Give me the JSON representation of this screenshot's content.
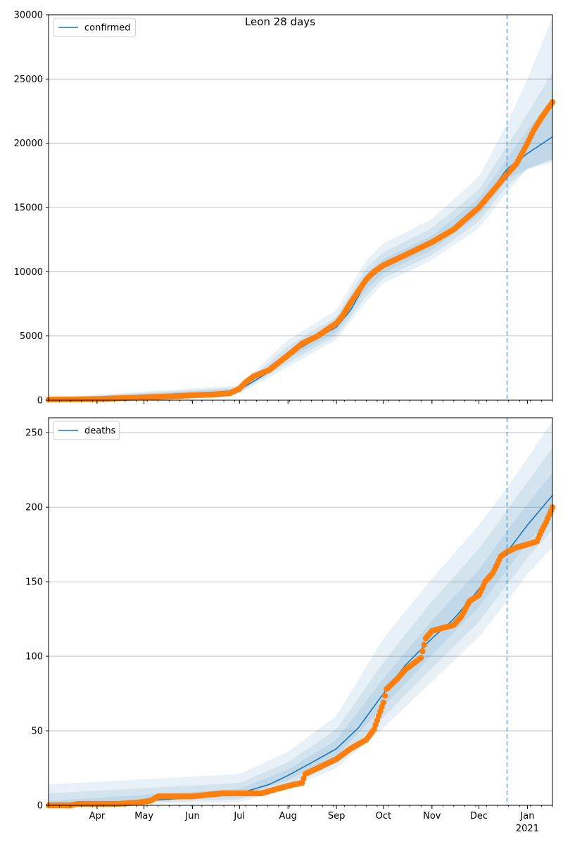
{
  "title": "Leon 28 days",
  "colors": {
    "model_line": "#1f77b4",
    "observed": "#ff7f0e",
    "band": "#1f77b4",
    "grid": "#b0b0b0",
    "vline": "#1f77b4"
  },
  "x_axis": {
    "start": "2020-03-01",
    "end": "2021-01-17",
    "forecast_start": "2020-12-19",
    "month_ticks": [
      {
        "date": "2020-04-01",
        "label": "Apr"
      },
      {
        "date": "2020-05-01",
        "label": "May"
      },
      {
        "date": "2020-06-01",
        "label": "Jun"
      },
      {
        "date": "2020-07-01",
        "label": "Jul"
      },
      {
        "date": "2020-08-01",
        "label": "Aug"
      },
      {
        "date": "2020-09-01",
        "label": "Sep"
      },
      {
        "date": "2020-10-01",
        "label": "Oct"
      },
      {
        "date": "2020-11-01",
        "label": "Nov"
      },
      {
        "date": "2020-12-01",
        "label": "Dec"
      },
      {
        "date": "2021-01-01",
        "label": "Jan"
      }
    ],
    "year_label": {
      "date": "2021-01-01",
      "label": "2021"
    }
  },
  "chart_data": [
    {
      "type": "line",
      "legend": "confirmed",
      "legend_position": "top-left",
      "grid": "horizontal",
      "ylim": [
        0,
        30000
      ],
      "yticks": [
        0,
        5000,
        10000,
        15000,
        20000,
        25000,
        30000
      ],
      "model_median": [
        [
          "2020-03-01",
          0
        ],
        [
          "2020-06-15",
          400
        ],
        [
          "2020-06-28",
          650
        ],
        [
          "2020-07-05",
          1100
        ],
        [
          "2020-07-20",
          2200
        ],
        [
          "2020-08-01",
          3500
        ],
        [
          "2020-08-15",
          4500
        ],
        [
          "2020-09-01",
          5700
        ],
        [
          "2020-09-10",
          7000
        ],
        [
          "2020-09-20",
          9200
        ],
        [
          "2020-10-01",
          10400
        ],
        [
          "2020-10-15",
          11200
        ],
        [
          "2020-11-01",
          12200
        ],
        [
          "2020-11-15",
          13300
        ],
        [
          "2020-12-01",
          15000
        ],
        [
          "2020-12-10",
          16500
        ],
        [
          "2020-12-19",
          18000
        ],
        [
          "2021-01-01",
          19200
        ],
        [
          "2021-01-17",
          20500
        ]
      ],
      "bands": [
        {
          "name": "50%",
          "lower": [
            [
              "2020-03-01",
              0
            ],
            [
              "2020-07-01",
              700
            ],
            [
              "2020-08-01",
              3200
            ],
            [
              "2020-09-01",
              5300
            ],
            [
              "2020-09-20",
              8600
            ],
            [
              "2020-10-01",
              9900
            ],
            [
              "2020-11-01",
              11700
            ],
            [
              "2020-12-01",
              14400
            ],
            [
              "2020-12-19",
              17200
            ],
            [
              "2021-01-01",
              18000
            ],
            [
              "2021-01-17",
              18800
            ]
          ],
          "upper": [
            [
              "2020-03-01",
              100
            ],
            [
              "2020-07-01",
              900
            ],
            [
              "2020-08-01",
              3800
            ],
            [
              "2020-09-01",
              6100
            ],
            [
              "2020-09-20",
              9800
            ],
            [
              "2020-10-01",
              11000
            ],
            [
              "2020-11-01",
              12800
            ],
            [
              "2020-12-01",
              15700
            ],
            [
              "2020-12-19",
              18800
            ],
            [
              "2021-01-01",
              21000
            ],
            [
              "2021-01-17",
              23500
            ]
          ]
        },
        {
          "name": "80%",
          "lower": [
            [
              "2020-03-01",
              0
            ],
            [
              "2020-07-01",
              600
            ],
            [
              "2020-08-01",
              2900
            ],
            [
              "2020-09-01",
              5000
            ],
            [
              "2020-09-20",
              8100
            ],
            [
              "2020-10-01",
              9500
            ],
            [
              "2020-11-01",
              11300
            ],
            [
              "2020-12-01",
              13900
            ],
            [
              "2020-12-19",
              16700
            ],
            [
              "2021-01-01",
              18000
            ],
            [
              "2021-01-17",
              18700
            ]
          ],
          "upper": [
            [
              "2020-03-01",
              150
            ],
            [
              "2020-07-01",
              1000
            ],
            [
              "2020-08-01",
              4200
            ],
            [
              "2020-09-01",
              6500
            ],
            [
              "2020-09-20",
              10300
            ],
            [
              "2020-10-01",
              11500
            ],
            [
              "2020-11-01",
              13400
            ],
            [
              "2020-12-01",
              16400
            ],
            [
              "2020-12-19",
              19800
            ],
            [
              "2021-01-01",
              22300
            ],
            [
              "2021-01-17",
              25500
            ]
          ]
        },
        {
          "name": "95%",
          "lower": [
            [
              "2020-03-01",
              0
            ],
            [
              "2020-07-01",
              500
            ],
            [
              "2020-08-01",
              2600
            ],
            [
              "2020-09-01",
              4700
            ],
            [
              "2020-09-20",
              7700
            ],
            [
              "2020-10-01",
              9100
            ],
            [
              "2020-11-01",
              10900
            ],
            [
              "2020-12-01",
              13400
            ],
            [
              "2020-12-19",
              16200
            ],
            [
              "2021-01-01",
              18000
            ],
            [
              "2021-01-17",
              18500
            ]
          ],
          "upper": [
            [
              "2020-03-01",
              200
            ],
            [
              "2020-07-01",
              1150
            ],
            [
              "2020-08-01",
              4700
            ],
            [
              "2020-09-01",
              7000
            ],
            [
              "2020-09-20",
              10900
            ],
            [
              "2020-10-01",
              12200
            ],
            [
              "2020-11-01",
              14100
            ],
            [
              "2020-12-01",
              17400
            ],
            [
              "2020-12-19",
              21500
            ],
            [
              "2021-01-01",
              25000
            ],
            [
              "2021-01-17",
              29800
            ]
          ]
        }
      ],
      "observed": [
        [
          "2020-03-01",
          50
        ],
        [
          "2020-03-15",
          60
        ],
        [
          "2020-04-01",
          80
        ],
        [
          "2020-04-15",
          150
        ],
        [
          "2020-05-01",
          220
        ],
        [
          "2020-05-15",
          280
        ],
        [
          "2020-06-01",
          380
        ],
        [
          "2020-06-15",
          450
        ],
        [
          "2020-06-25",
          550
        ],
        [
          "2020-07-01",
          900
        ],
        [
          "2020-07-05",
          1400
        ],
        [
          "2020-07-10",
          1850
        ],
        [
          "2020-07-20",
          2350
        ],
        [
          "2020-08-01",
          3500
        ],
        [
          "2020-08-10",
          4400
        ],
        [
          "2020-08-20",
          5000
        ],
        [
          "2020-09-01",
          6000
        ],
        [
          "2020-09-05",
          6600
        ],
        [
          "2020-09-10",
          7600
        ],
        [
          "2020-09-15",
          8500
        ],
        [
          "2020-09-20",
          9400
        ],
        [
          "2020-09-25",
          10000
        ],
        [
          "2020-10-01",
          10500
        ],
        [
          "2020-10-15",
          11300
        ],
        [
          "2020-11-01",
          12300
        ],
        [
          "2020-11-15",
          13300
        ],
        [
          "2020-12-01",
          15000
        ],
        [
          "2020-12-10",
          16300
        ],
        [
          "2020-12-19",
          17600
        ],
        [
          "2020-12-25",
          18400
        ],
        [
          "2021-01-01",
          20000
        ],
        [
          "2021-01-05",
          21000
        ],
        [
          "2021-01-10",
          22000
        ],
        [
          "2021-01-17",
          23200
        ]
      ]
    },
    {
      "type": "line",
      "legend": "deaths",
      "legend_position": "top-left",
      "grid": "horizontal",
      "ylim": [
        0,
        260
      ],
      "yticks": [
        0,
        50,
        100,
        150,
        200,
        250
      ],
      "model_median": [
        [
          "2020-03-01",
          0
        ],
        [
          "2020-04-15",
          2
        ],
        [
          "2020-06-01",
          5
        ],
        [
          "2020-07-01",
          8
        ],
        [
          "2020-07-20",
          14
        ],
        [
          "2020-08-01",
          20
        ],
        [
          "2020-08-15",
          28
        ],
        [
          "2020-09-01",
          38
        ],
        [
          "2020-09-15",
          52
        ],
        [
          "2020-10-01",
          75
        ],
        [
          "2020-10-15",
          94
        ],
        [
          "2020-11-01",
          112
        ],
        [
          "2020-11-15",
          125
        ],
        [
          "2020-12-01",
          145
        ],
        [
          "2020-12-19",
          170
        ],
        [
          "2021-01-01",
          188
        ],
        [
          "2021-01-17",
          208
        ]
      ],
      "bands": [
        {
          "name": "50%",
          "lower": [
            [
              "2020-03-01",
              0
            ],
            [
              "2020-07-01",
              6
            ],
            [
              "2020-08-01",
              17
            ],
            [
              "2020-09-01",
              33
            ],
            [
              "2020-10-01",
              66
            ],
            [
              "2020-11-01",
              101
            ],
            [
              "2020-12-01",
              133
            ],
            [
              "2020-12-19",
              158
            ],
            [
              "2021-01-01",
              176
            ],
            [
              "2021-01-17",
              195
            ]
          ],
          "upper": [
            [
              "2020-03-01",
              3
            ],
            [
              "2020-07-01",
              11
            ],
            [
              "2020-08-01",
              24
            ],
            [
              "2020-09-01",
              44
            ],
            [
              "2020-10-01",
              85
            ],
            [
              "2020-11-01",
              124
            ],
            [
              "2020-12-01",
              158
            ],
            [
              "2020-12-19",
              184
            ],
            [
              "2021-01-01",
              202
            ],
            [
              "2021-01-17",
              223
            ]
          ]
        },
        {
          "name": "80%",
          "lower": [
            [
              "2020-03-01",
              0
            ],
            [
              "2020-07-01",
              4
            ],
            [
              "2020-08-01",
              14
            ],
            [
              "2020-09-01",
              29
            ],
            [
              "2020-10-01",
              59
            ],
            [
              "2020-11-01",
              92
            ],
            [
              "2020-12-01",
              123
            ],
            [
              "2020-12-19",
              148
            ],
            [
              "2021-01-01",
              166
            ],
            [
              "2021-01-17",
              185
            ]
          ],
          "upper": [
            [
              "2020-03-01",
              8
            ],
            [
              "2020-07-01",
              15
            ],
            [
              "2020-08-01",
              29
            ],
            [
              "2020-09-01",
              51
            ],
            [
              "2020-10-01",
              96
            ],
            [
              "2020-11-01",
              137
            ],
            [
              "2020-12-01",
              172
            ],
            [
              "2020-12-19",
              198
            ],
            [
              "2021-01-01",
              217
            ],
            [
              "2021-01-17",
              240
            ]
          ]
        },
        {
          "name": "95%",
          "lower": [
            [
              "2020-03-01",
              0
            ],
            [
              "2020-07-01",
              2
            ],
            [
              "2020-08-01",
              11
            ],
            [
              "2020-09-01",
              25
            ],
            [
              "2020-10-01",
              52
            ],
            [
              "2020-11-01",
              83
            ],
            [
              "2020-12-01",
              113
            ],
            [
              "2020-12-19",
              137
            ],
            [
              "2021-01-01",
              155
            ],
            [
              "2021-01-17",
              173
            ]
          ],
          "upper": [
            [
              "2020-03-01",
              14
            ],
            [
              "2020-07-01",
              21
            ],
            [
              "2020-08-01",
              36
            ],
            [
              "2020-09-01",
              60
            ],
            [
              "2020-10-01",
              112
            ],
            [
              "2020-11-01",
              152
            ],
            [
              "2020-12-01",
              188
            ],
            [
              "2020-12-19",
              213
            ],
            [
              "2021-01-01",
              233
            ],
            [
              "2021-01-17",
              258
            ]
          ]
        }
      ],
      "observed": [
        [
          "2020-03-01",
          0
        ],
        [
          "2020-03-15",
          0
        ],
        [
          "2020-03-20",
          1
        ],
        [
          "2020-04-01",
          1
        ],
        [
          "2020-04-15",
          1
        ],
        [
          "2020-04-28",
          2
        ],
        [
          "2020-05-05",
          3
        ],
        [
          "2020-05-10",
          6
        ],
        [
          "2020-06-01",
          6
        ],
        [
          "2020-06-10",
          7
        ],
        [
          "2020-06-20",
          8
        ],
        [
          "2020-07-01",
          8
        ],
        [
          "2020-07-15",
          8
        ],
        [
          "2020-07-25",
          11
        ],
        [
          "2020-08-05",
          14
        ],
        [
          "2020-08-10",
          15
        ],
        [
          "2020-08-12",
          21
        ],
        [
          "2020-08-20",
          25
        ],
        [
          "2020-09-01",
          31
        ],
        [
          "2020-09-10",
          38
        ],
        [
          "2020-09-20",
          44
        ],
        [
          "2020-09-25",
          51
        ],
        [
          "2020-10-01",
          69
        ],
        [
          "2020-10-03",
          78
        ],
        [
          "2020-10-10",
          85
        ],
        [
          "2020-10-15",
          91
        ],
        [
          "2020-10-25",
          99
        ],
        [
          "2020-10-28",
          112
        ],
        [
          "2020-11-01",
          117
        ],
        [
          "2020-11-15",
          121
        ],
        [
          "2020-11-20",
          127
        ],
        [
          "2020-11-25",
          137
        ],
        [
          "2020-12-01",
          141
        ],
        [
          "2020-12-05",
          150
        ],
        [
          "2020-12-10",
          156
        ],
        [
          "2020-12-15",
          167
        ],
        [
          "2020-12-19",
          170
        ],
        [
          "2020-12-25",
          173
        ],
        [
          "2021-01-01",
          175
        ],
        [
          "2021-01-07",
          177
        ],
        [
          "2021-01-10",
          184
        ],
        [
          "2021-01-13",
          190
        ],
        [
          "2021-01-17",
          200
        ]
      ]
    }
  ]
}
